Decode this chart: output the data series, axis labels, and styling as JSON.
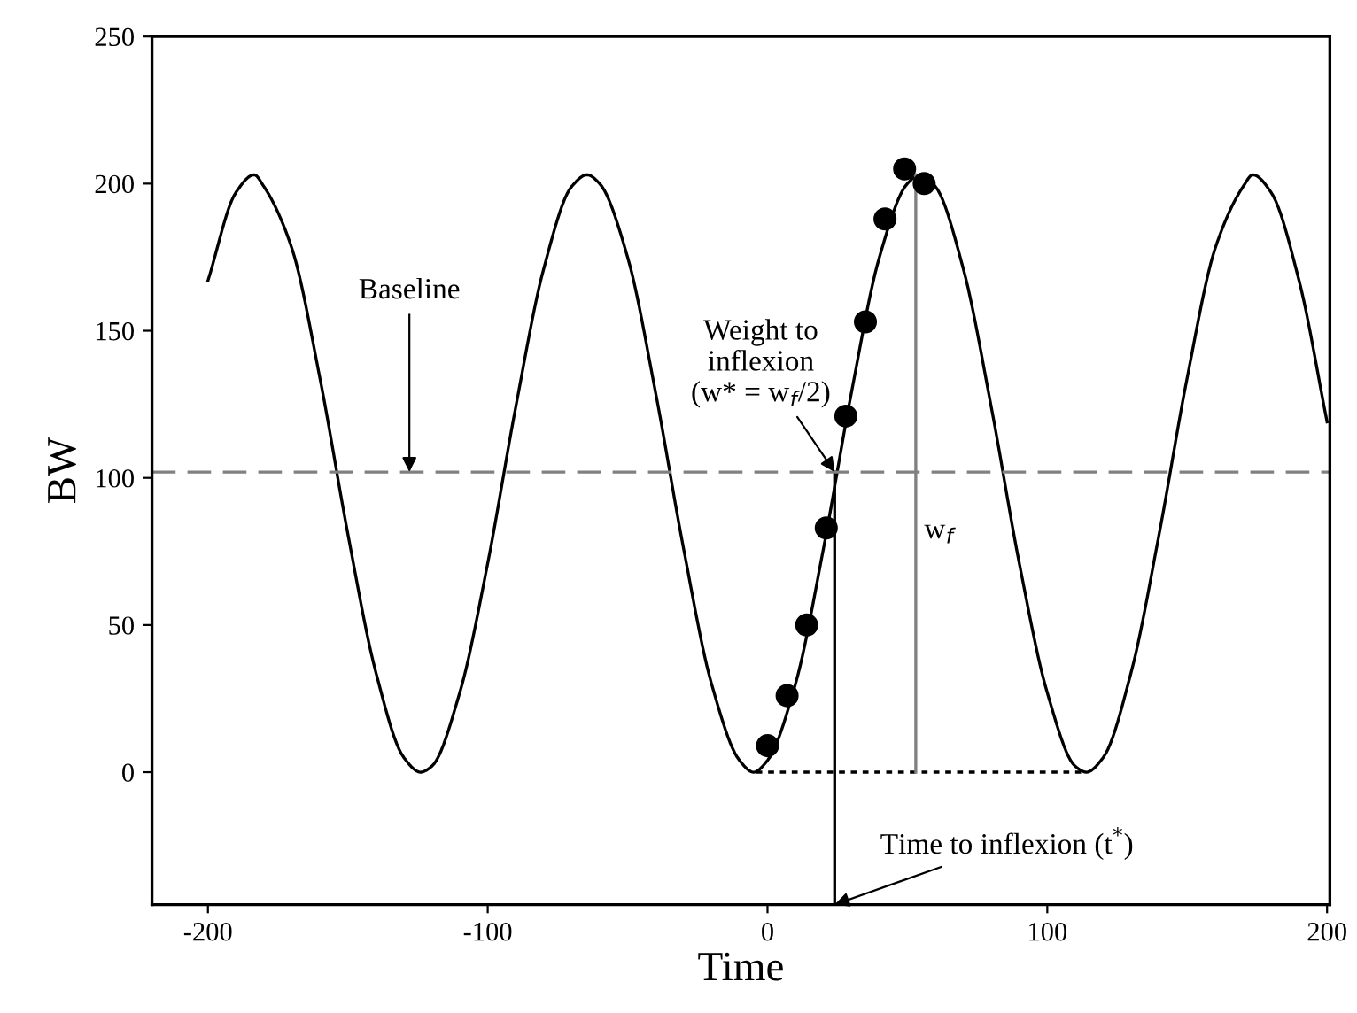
{
  "chart_data": {
    "type": "line",
    "xlabel": "Time",
    "ylabel": "BW",
    "xlim": [
      -220,
      201
    ],
    "ylim": [
      -45,
      250
    ],
    "xticks": [
      -200,
      -100,
      0,
      100,
      200
    ],
    "yticks": [
      0,
      50,
      100,
      150,
      200,
      250
    ],
    "grid": false,
    "marker": "none",
    "series": [
      {
        "color": "#000000",
        "line_style": "solid",
        "x": [
          -200,
          -190,
          -183.5,
          -180,
          -170,
          -160,
          -150,
          -140,
          -130,
          -124,
          -120,
          -110,
          -100,
          -90,
          -80,
          -70,
          -64.5,
          -60,
          -50,
          -40,
          -30,
          -20,
          -10,
          -5,
          0,
          10,
          20,
          30,
          40,
          50,
          54.5,
          60,
          70,
          80,
          90,
          100,
          110,
          114,
          120,
          130,
          140,
          150,
          160,
          170,
          173.5,
          180,
          190,
          200
        ],
        "values": [
          167,
          197,
          203,
          199,
          178,
          134,
          81,
          34,
          5,
          0,
          2,
          27,
          71,
          124,
          171,
          199,
          203,
          200,
          175,
          129,
          76,
          30,
          4,
          0,
          4,
          30,
          76,
          129,
          175,
          200,
          203,
          199,
          171,
          124,
          71,
          27,
          2,
          0,
          5,
          34,
          81,
          134,
          178,
          199,
          203,
          197,
          167,
          119
        ]
      },
      {
        "type": "scatter",
        "color": "#000000",
        "marker": "circle",
        "x": [
          0,
          7,
          14,
          21,
          28,
          35,
          42,
          49,
          56
        ],
        "values": [
          9,
          26,
          50,
          83,
          121,
          153,
          188,
          205,
          200
        ]
      },
      {
        "color": "#000000",
        "line_style": "dotted",
        "x": [
          -4,
          114
        ],
        "values": [
          0,
          0
        ]
      },
      {
        "color": "#000000",
        "line_style": "solid",
        "x": [
          24,
          24
        ],
        "values": [
          -45,
          102
        ]
      },
      {
        "color": "#808080",
        "line_style": "solid",
        "x": [
          53,
          53
        ],
        "values": [
          203,
          0
        ]
      }
    ],
    "ref_lines": [
      {
        "axis": "y",
        "value": 102,
        "color": "#808080",
        "line_style": "dashed"
      }
    ],
    "annotations": [
      {
        "text": "Baseline",
        "x": -128,
        "y": 102
      },
      {
        "text": "Weight to\ninflexion\n(w* = w$_{f}$/2)",
        "x": 24,
        "y": 102
      },
      {
        "text": "Time to inflexion (t$^{*}$)",
        "x": 24,
        "y": -45
      },
      {
        "text": "w$_{f}$",
        "x": 56,
        "y": 84
      }
    ]
  }
}
